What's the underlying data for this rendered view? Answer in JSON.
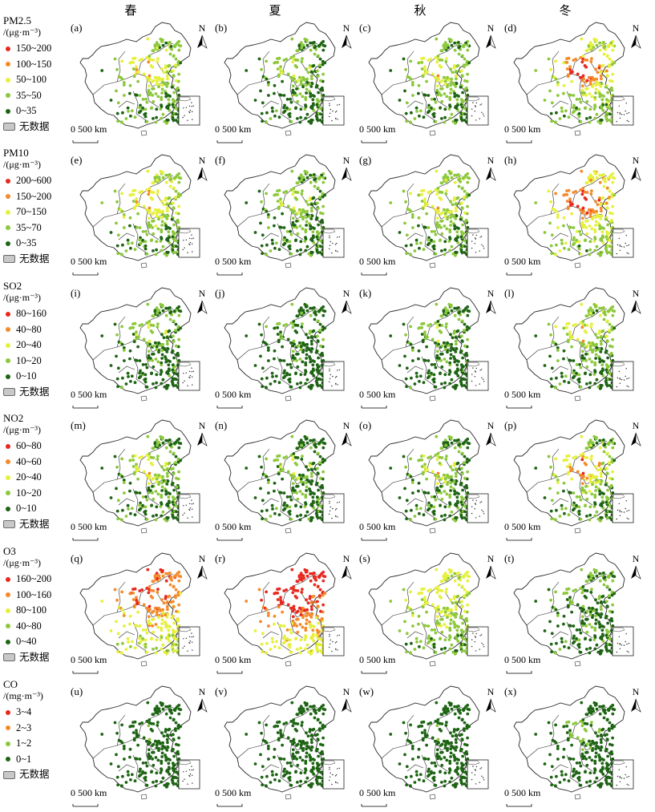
{
  "seasons": [
    "春",
    "夏",
    "秋",
    "冬"
  ],
  "scale_text": "0  500 km",
  "north_label": "N",
  "colors": {
    "red": "#e8281e",
    "orange": "#f48a2a",
    "yellow": "#e6f03c",
    "lgreen": "#8cc83c",
    "dgreen": "#1e6414",
    "nodata": "#c8c8c8"
  },
  "rows": [
    {
      "title": "PM2.5",
      "unit": "/(μg·m⁻³)",
      "legend": [
        "150~200",
        "100~150",
        "50~100",
        "35~50",
        "0~35"
      ],
      "nodata": "无数据",
      "panels": [
        "(a)",
        "(b)",
        "(c)",
        "(d)"
      ]
    },
    {
      "title": "PM10",
      "unit": "/(μg·m⁻³)",
      "legend": [
        "200~600",
        "150~200",
        "70~150",
        "35~70",
        "0~35"
      ],
      "nodata": "无数据",
      "panels": [
        "(e)",
        "(f)",
        "(g)",
        "(h)"
      ]
    },
    {
      "title": "SO2",
      "unit": "/(μg·m⁻³)",
      "legend": [
        "80~160",
        "40~80",
        "20~40",
        "10~20",
        "0~10"
      ],
      "nodata": "无数据",
      "panels": [
        "(i)",
        "(j)",
        "(k)",
        "(l)"
      ]
    },
    {
      "title": "NO2",
      "unit": "/(μg·m⁻³)",
      "legend": [
        "60~80",
        "40~60",
        "20~40",
        "10~20",
        "0~10"
      ],
      "nodata": "无数据",
      "panels": [
        "(m)",
        "(n)",
        "(o)",
        "(p)"
      ]
    },
    {
      "title": "O3",
      "unit": "/(μg·m⁻³)",
      "legend": [
        "160~200",
        "100~160",
        "80~100",
        "40~80",
        "0~40"
      ],
      "nodata": "无数据",
      "panels": [
        "(q)",
        "(r)",
        "(s)",
        "(t)"
      ]
    },
    {
      "title": "CO",
      "unit": "/(mg·m⁻³)",
      "legend": [
        "3~4",
        "2~3",
        "1~2",
        "0~1"
      ],
      "nodata": "无数据",
      "panels": [
        "(u)",
        "(v)",
        "(w)",
        "(x)"
      ]
    }
  ]
}
